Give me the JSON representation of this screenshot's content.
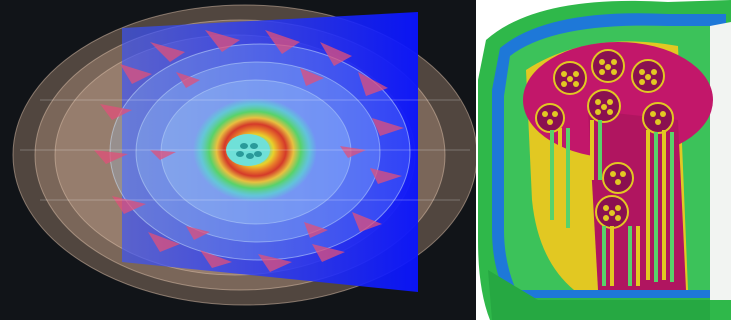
{
  "figure": {
    "panels": [
      {
        "subject": "nuclear-reactor-core-flux-visualization"
      },
      {
        "subject": "reactor-vessel-cutaway-model"
      }
    ],
    "colors": {
      "background_dark": "#111418",
      "blue_plane": "#1a1aff",
      "reflector_tan": "#c9a48a",
      "blade_pink": "#e0507a",
      "ring_red": "#d43a2a",
      "ring_yellow": "#e8d22a",
      "ring_green": "#58d26a",
      "ring_cyan": "#5ad6d0",
      "vessel_green": "#2fb84a",
      "vessel_blue": "#1e78d8",
      "core_yellow": "#e2c822",
      "core_magenta": "#c2176a"
    }
  }
}
